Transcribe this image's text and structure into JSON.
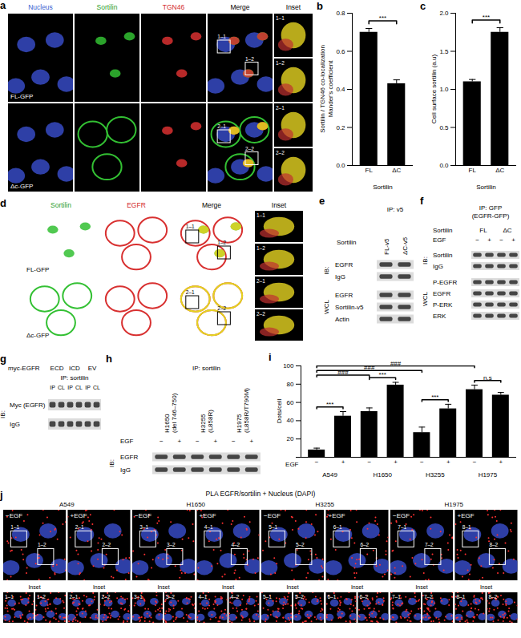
{
  "panels": {
    "a": {
      "label": "a",
      "columns": [
        "Nucleus",
        "Sortilin",
        "TGN46",
        "Merge",
        "Inset"
      ],
      "column_colors": [
        "#3a5fd0",
        "#2e9e2e",
        "#d42a2a",
        "#000000",
        "#000000"
      ],
      "rows": [
        "FL-GFP",
        "Δc-GFP"
      ],
      "boxes": [
        [
          "1–1",
          "1–2"
        ],
        [
          "2–1",
          "2–2"
        ]
      ]
    },
    "d": {
      "label": "d",
      "columns": [
        "Sortilin",
        "EGFR",
        "Merge",
        "Inset"
      ],
      "column_colors": [
        "#2e9e2e",
        "#d42a2a",
        "#000000",
        "#000000"
      ],
      "rows": [
        "FL-GFP",
        "Δc-GFP"
      ],
      "boxes": [
        [
          "1–1",
          "1–2"
        ],
        [
          "2–1",
          "2–2"
        ]
      ]
    },
    "e": {
      "label": "e",
      "title": "IP: v5",
      "lane_header": "Sortilin",
      "lanes": [
        "FL-v5",
        "ΔC-v5"
      ],
      "sections": [
        {
          "name": "IB:",
          "rows": [
            "EGFR",
            "IgG"
          ]
        },
        {
          "name": "WCL",
          "rows": [
            "EGFR",
            "Sortilin-v5",
            "Actin"
          ]
        }
      ]
    },
    "f": {
      "label": "f",
      "title": [
        "IP: GFP",
        "(EGFR-GFP)"
      ],
      "groups_header": "Sortilin",
      "groups": [
        "FL",
        "ΔC"
      ],
      "treatment": "EGF",
      "lanes": [
        "−",
        "+",
        "−",
        "+"
      ],
      "sections": [
        {
          "name": "IB:",
          "rows": [
            "Sortilin",
            "IgG"
          ]
        },
        {
          "name": "WCL",
          "rows": [
            "P-EGFR",
            "EGFR",
            "P-ERK",
            "ERK"
          ]
        }
      ]
    },
    "g": {
      "label": "g",
      "groups_header": "myc-EGFR",
      "groups": [
        "ECD",
        "ICD",
        "EV"
      ],
      "title": "IP: sortilin",
      "lanes": [
        "IP",
        "CL",
        "IP",
        "CL",
        "IP",
        "CL"
      ],
      "sections": [
        {
          "name": "IB:",
          "rows": [
            "Myc (EGFR)",
            "IgG"
          ]
        }
      ]
    },
    "h": {
      "label": "h",
      "title": "IP: sortilin",
      "groups": [
        [
          "H1650",
          "(del 746–750)"
        ],
        [
          "H3255",
          "(L858R)"
        ],
        [
          "H1975",
          "(L858R/T790M)"
        ]
      ],
      "treatment": "EGF",
      "lanes": [
        "−",
        "+",
        "−",
        "+",
        "−",
        "+"
      ],
      "sections": [
        {
          "name": "IB:",
          "rows": [
            "EGFR",
            "IgG"
          ]
        }
      ]
    },
    "j": {
      "label": "j",
      "title": "PLA EGFR/sortilin + Nucleus (DAPI)",
      "cell_lines": [
        "A549",
        "H1650",
        "H3255",
        "H1975"
      ],
      "conditions": [
        "−EGF",
        "+EGF"
      ],
      "boxes": [
        [
          "1–1",
          "1–2"
        ],
        [
          "2–1",
          "2–2"
        ],
        [
          "3–1",
          "3–2"
        ],
        [
          "4–1",
          "4–2"
        ],
        [
          "5–1",
          "5–2"
        ],
        [
          "6–1",
          "6–2"
        ],
        [
          "7–1",
          "7–2"
        ],
        [
          "8–1",
          "8–2"
        ]
      ],
      "inset_header": "Inset"
    }
  },
  "chart_data": [
    {
      "panel": "b",
      "type": "bar",
      "categories": [
        "FL",
        "ΔC"
      ],
      "values": [
        0.7,
        0.43
      ],
      "errors": [
        0.02,
        0.02
      ],
      "color": "#000000",
      "x_label": "Sortilin",
      "y_label": [
        "Sortilin / TGN46 co-localization",
        "Mander's coefficient"
      ],
      "ylim": [
        0,
        0.8
      ],
      "yticks": [
        {
          "value": 0,
          "label": "0.0"
        },
        0.2,
        0.4,
        0.6,
        0.8
      ],
      "significance": [
        {
          "pair": [
            0,
            1
          ],
          "label": "***"
        }
      ]
    },
    {
      "panel": "c",
      "type": "bar",
      "categories": [
        "FL",
        "ΔC"
      ],
      "values": [
        1.1,
        1.75
      ],
      "errors": [
        0.03,
        0.06
      ],
      "color": "#000000",
      "x_label": "Sortilin",
      "y_label": [
        "Cell surface sortilin (a.u)"
      ],
      "ylim": [
        0,
        2.0
      ],
      "yticks": [
        {
          "value": 0,
          "label": "0.0"
        },
        0.5,
        {
          "value": 1,
          "label": "1.0"
        },
        1.5,
        {
          "value": 2,
          "label": "2.0"
        }
      ],
      "significance": [
        {
          "pair": [
            0,
            1
          ],
          "label": "***"
        }
      ]
    },
    {
      "panel": "i",
      "type": "bar",
      "categories": [
        "−",
        "+",
        "−",
        "+",
        "−",
        "+",
        "−",
        "+"
      ],
      "values": [
        8,
        45,
        50,
        79,
        27,
        53,
        74,
        68
      ],
      "errors": [
        2,
        5,
        4,
        3,
        6,
        5,
        5,
        3
      ],
      "color": "#000000",
      "x_label": "EGF",
      "x_groups": [
        {
          "label": "A549",
          "members": [
            0,
            1
          ]
        },
        {
          "label": "H1650",
          "members": [
            2,
            3
          ]
        },
        {
          "label": "H3255",
          "members": [
            4,
            5
          ]
        },
        {
          "label": "H1975",
          "members": [
            6,
            7
          ]
        }
      ],
      "y_label": [
        "Dots/cell"
      ],
      "ylim": [
        0,
        100
      ],
      "yticks": [
        0,
        20,
        40,
        60,
        80,
        100
      ],
      "significance": [
        {
          "pair": [
            0,
            1
          ],
          "label": "***"
        },
        {
          "pair": [
            2,
            3
          ],
          "label": "***"
        },
        {
          "pair": [
            4,
            5
          ],
          "label": "***"
        },
        {
          "pair": [
            6,
            7
          ],
          "label": "n.s"
        },
        {
          "pair": [
            0,
            2
          ],
          "label": "###"
        },
        {
          "pair": [
            0,
            4
          ],
          "label": "###"
        },
        {
          "pair": [
            0,
            6
          ],
          "label": "###"
        }
      ]
    }
  ]
}
